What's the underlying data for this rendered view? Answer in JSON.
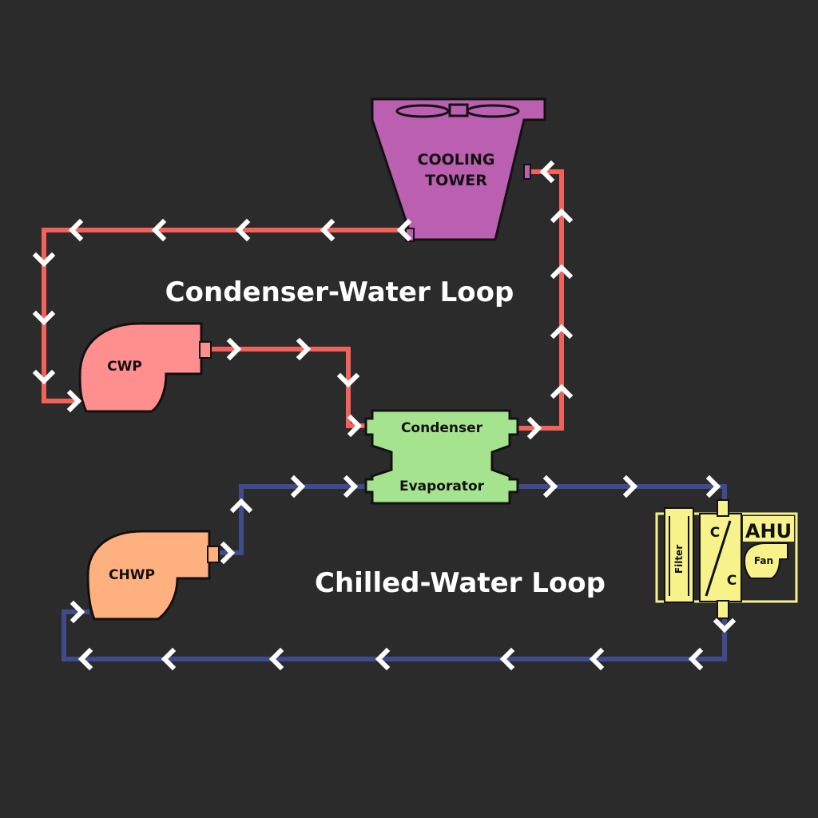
{
  "loops": {
    "condenser_title": "Condenser-Water Loop",
    "chilled_title": "Chilled-Water Loop"
  },
  "components": {
    "cooling_tower_line1": "COOLING",
    "cooling_tower_line2": "TOWER",
    "cwp": "CWP",
    "chwp": "CHWP",
    "condenser": "Condenser",
    "evaporator": "Evaporator",
    "ahu": "AHU",
    "filter": "Filter",
    "coil_c1": "C",
    "coil_c2": "C",
    "fan": "Fan"
  },
  "colors": {
    "background": "#2b2b2b",
    "condenser_pipe": "#f2625a",
    "chilled_pipe": "#3f4b8c",
    "cooling_tower": "#bb5fb0",
    "cwp": "#ff8f8f",
    "chwp": "#ffb07f",
    "chiller": "#a6e38f",
    "ahu": "#f7f28a",
    "arrow": "#ffffff"
  }
}
